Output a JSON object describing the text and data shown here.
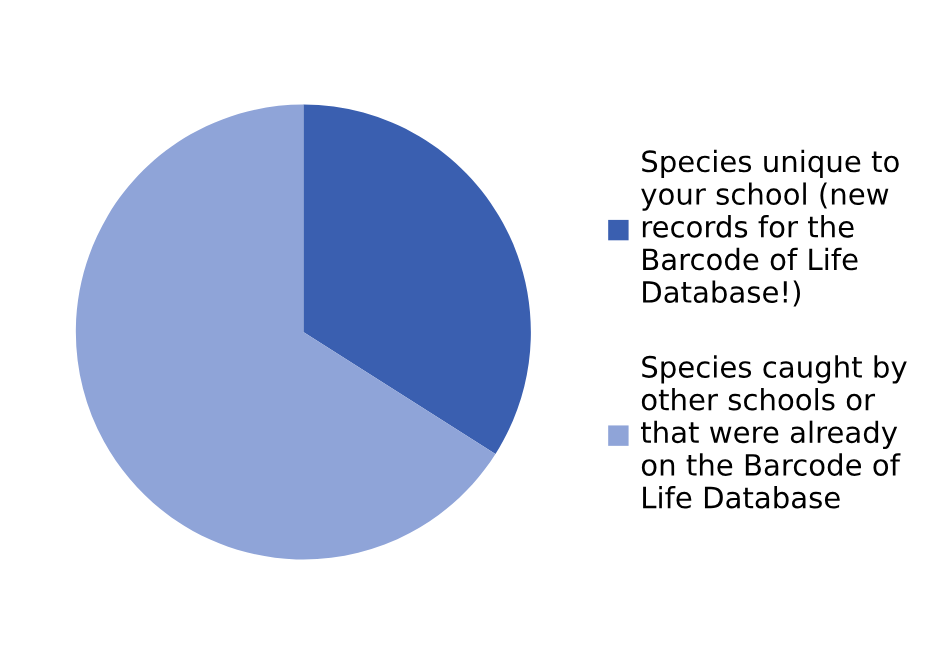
{
  "chart_data": {
    "type": "pie",
    "categories": [
      "Species unique to\nyour school (new\nrecords for the\nBarcode of Life\nDatabase!)",
      "Species caught by\nother schools or\nthat were already\non the Barcode of\nLife Database"
    ],
    "values": [
      34,
      66
    ],
    "colors": [
      "#3a5fb0",
      "#8fa4d8"
    ],
    "legend": "right"
  }
}
